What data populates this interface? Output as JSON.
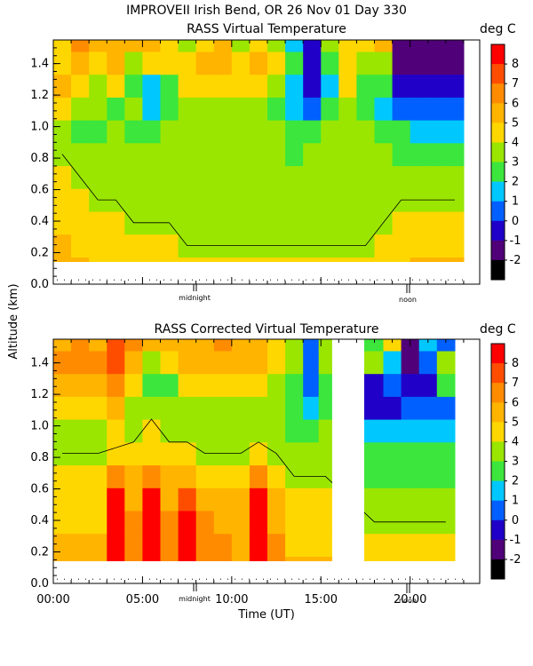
{
  "header": {
    "main_title": "IMPROVEII  Irish Bend, OR  26 Nov 01 Day 330",
    "y_axis_label": "Altitude (km)",
    "x_axis_label": "Time (UT)"
  },
  "markers": {
    "midnight": "midnight",
    "noon": "noon"
  },
  "colorbar": {
    "unit": "deg C",
    "levels": [
      "8",
      "7",
      "6",
      "5",
      "4",
      "3",
      "2",
      "1",
      "0",
      "-1",
      "-2"
    ],
    "colors": [
      "#ff0000",
      "#ff4d00",
      "#ff8c00",
      "#ffb400",
      "#ffd700",
      "#9ae600",
      "#3ce63c",
      "#00c8ff",
      "#0060ff",
      "#2000c8",
      "#500078",
      "#000000"
    ]
  },
  "chart_data": [
    {
      "type": "heatmap",
      "title": "RASS Virtual Temperature",
      "xlabel": "",
      "ylabel": "Altitude (km)",
      "xlim": [
        0,
        23.9
      ],
      "ylim": [
        0,
        1.55
      ],
      "x_ticks": [],
      "y_ticks": [
        "0.0",
        "0.2",
        "0.4",
        "0.6",
        "0.8",
        "1.0",
        "1.2",
        "1.4"
      ],
      "colorbar_unit": "deg C",
      "value_range": [
        -2,
        8
      ],
      "data_start_altitude_km": 0.1,
      "columns": [
        {
          "t": 0.5,
          "values": [
            5,
            5,
            4.5,
            4,
            4,
            3.5,
            3,
            4,
            5,
            4.5,
            4
          ]
        },
        {
          "t": 1.5,
          "values": [
            5,
            4.5,
            4,
            4,
            3.5,
            3,
            2.5,
            3,
            4,
            5,
            6
          ]
        },
        {
          "t": 2.5,
          "values": [
            4.5,
            4.5,
            4,
            3.5,
            3,
            3,
            2,
            3,
            3,
            4,
            5
          ]
        },
        {
          "t": 3.5,
          "values": [
            4.5,
            4,
            4,
            3.5,
            3,
            3,
            3,
            2,
            4,
            5,
            5
          ]
        },
        {
          "t": 4.5,
          "values": [
            4,
            4,
            3.5,
            3.5,
            3,
            3,
            2.5,
            3,
            2,
            3,
            5
          ]
        },
        {
          "t": 5.5,
          "values": [
            4,
            4,
            3.5,
            3,
            3,
            3,
            2,
            1,
            1,
            4,
            5
          ]
        },
        {
          "t": 6.5,
          "values": [
            4,
            4,
            3.5,
            3,
            3,
            3,
            3,
            2,
            2,
            4,
            4
          ]
        },
        {
          "t": 7.5,
          "values": [
            4,
            3.5,
            3.5,
            3,
            3,
            3,
            3,
            3,
            4,
            4,
            3
          ]
        },
        {
          "t": 8.5,
          "values": [
            4,
            3.5,
            3,
            3,
            3,
            3,
            3,
            3,
            4,
            5,
            4
          ]
        },
        {
          "t": 9.5,
          "values": [
            4,
            3.5,
            3,
            3,
            3,
            3,
            3,
            3,
            4,
            5,
            5
          ]
        },
        {
          "t": 10.5,
          "values": [
            4,
            3.5,
            3,
            3,
            3,
            3,
            3,
            3,
            4,
            4,
            3
          ]
        },
        {
          "t": 11.5,
          "values": [
            4,
            3.5,
            3,
            3,
            3,
            3,
            3,
            3,
            4,
            5,
            4
          ]
        },
        {
          "t": 12.5,
          "values": [
            4,
            3.5,
            3,
            3,
            3,
            3,
            3,
            2.5,
            3,
            4,
            3
          ]
        },
        {
          "t": 13.5,
          "values": [
            4,
            3.5,
            3,
            3,
            3,
            2.5,
            2,
            1,
            1,
            2,
            1
          ]
        },
        {
          "t": 14.5,
          "values": [
            4,
            3.5,
            3,
            3,
            3,
            3,
            2,
            0,
            -1,
            -1,
            -1
          ]
        },
        {
          "t": 15.5,
          "values": [
            4,
            3.5,
            3,
            3,
            3,
            3,
            3,
            2,
            1,
            2,
            3
          ]
        },
        {
          "t": 16.5,
          "values": [
            4,
            3.5,
            3,
            3,
            3,
            3,
            3,
            3,
            4,
            4,
            4
          ]
        },
        {
          "t": 17.5,
          "values": [
            4,
            3.5,
            3,
            3,
            3,
            3,
            3,
            2,
            2,
            3,
            4
          ]
        },
        {
          "t": 18.5,
          "values": [
            4,
            4,
            3.5,
            3.5,
            3,
            3,
            2,
            1,
            2,
            3,
            5
          ]
        },
        {
          "t": 19.5,
          "values": [
            4.5,
            4,
            4,
            3.5,
            3,
            2.5,
            2,
            0,
            -1,
            -2,
            -2
          ]
        },
        {
          "t": 20.5,
          "values": [
            5,
            4.5,
            4,
            3.5,
            3,
            2.5,
            1.5,
            0,
            -1,
            -2,
            -2
          ]
        },
        {
          "t": 21.5,
          "values": [
            5,
            4.5,
            4,
            3.5,
            3,
            2.5,
            1.5,
            0,
            -1,
            -2,
            -2
          ]
        },
        {
          "t": 22.5,
          "values": [
            5,
            4.5,
            4,
            3.5,
            3,
            2.5,
            1.5,
            0,
            -1,
            -2,
            -2
          ]
        }
      ]
    },
    {
      "type": "heatmap",
      "title": "RASS Corrected Virtual Temperature",
      "xlabel": "Time (UT)",
      "ylabel": "Altitude (km)",
      "xlim": [
        0,
        23.9
      ],
      "ylim": [
        0,
        1.55
      ],
      "x_ticks": [
        "00:00",
        "05:00",
        "10:00",
        "15:00",
        "20:00"
      ],
      "y_ticks": [
        "0.0",
        "0.2",
        "0.4",
        "0.6",
        "0.8",
        "1.0",
        "1.2",
        "1.4"
      ],
      "colorbar_unit": "deg C",
      "value_range": [
        -2,
        8
      ],
      "data_start_altitude_km": 0.1,
      "data_gap_hours": [
        15.6,
        17.4
      ],
      "columns": [
        {
          "t": 0.5,
          "values": [
            5,
            5,
            4.5,
            4,
            4,
            3.5,
            3,
            4,
            5,
            6,
            5
          ]
        },
        {
          "t": 1.5,
          "values": [
            5,
            5,
            4.5,
            4,
            4,
            3.5,
            3,
            4,
            5,
            6,
            6
          ]
        },
        {
          "t": 2.5,
          "values": [
            5,
            5,
            4.5,
            4,
            4,
            3.5,
            3,
            4,
            5,
            6,
            5
          ]
        },
        {
          "t": 3.5,
          "values": [
            8,
            8,
            8,
            8,
            6,
            4,
            4,
            5,
            6,
            7,
            7
          ]
        },
        {
          "t": 4.5,
          "values": [
            6,
            6,
            6,
            5,
            5,
            4,
            3,
            3,
            4,
            5,
            6
          ]
        },
        {
          "t": 5.5,
          "values": [
            8,
            8,
            8,
            8,
            6,
            4,
            4,
            3,
            2,
            3,
            5
          ]
        },
        {
          "t": 6.5,
          "values": [
            6,
            6,
            6,
            5,
            5,
            4,
            3,
            3,
            2,
            4,
            5
          ]
        },
        {
          "t": 7.5,
          "values": [
            8,
            8,
            8,
            7,
            5,
            4,
            3,
            3,
            4,
            5,
            5
          ]
        },
        {
          "t": 8.5,
          "values": [
            6,
            6,
            6,
            5,
            4,
            3.5,
            3,
            3,
            4,
            5,
            5
          ]
        },
        {
          "t": 9.5,
          "values": [
            6,
            6,
            5,
            5,
            4,
            3.5,
            3,
            3,
            4,
            5,
            6
          ]
        },
        {
          "t": 10.5,
          "values": [
            5,
            5,
            5,
            5,
            4,
            3.5,
            3,
            3,
            4,
            5,
            5
          ]
        },
        {
          "t": 11.5,
          "values": [
            8,
            8,
            8,
            8,
            6,
            4,
            3,
            3,
            4,
            5,
            5
          ]
        },
        {
          "t": 12.5,
          "values": [
            6,
            6,
            5,
            5,
            4,
            3.5,
            3,
            3,
            3,
            4,
            4
          ]
        },
        {
          "t": 13.5,
          "values": [
            5,
            4.5,
            4,
            4,
            3.5,
            3,
            2.5,
            2,
            2,
            3,
            3
          ]
        },
        {
          "t": 14.5,
          "values": [
            5,
            4.5,
            4,
            4,
            3.5,
            3,
            2,
            1,
            0,
            0,
            0
          ]
        },
        {
          "t": 15.25,
          "values": [
            5,
            4.5,
            4,
            4,
            3.5,
            3,
            3,
            2,
            2,
            3,
            3
          ]
        },
        {
          "t": 18.0,
          "values": [
            4.5,
            4,
            3.5,
            3,
            2.5,
            2,
            1,
            -1,
            -1,
            3,
            2
          ]
        },
        {
          "t": 19.0,
          "values": [
            4.5,
            4,
            3.5,
            3,
            2.5,
            2,
            1,
            -1,
            0,
            1,
            4
          ]
        },
        {
          "t": 20.0,
          "values": [
            4.5,
            4,
            3.5,
            3,
            2.5,
            2,
            1.5,
            0,
            -1,
            -2,
            -2
          ]
        },
        {
          "t": 21.0,
          "values": [
            4.5,
            4,
            3.5,
            3,
            2.5,
            2,
            1,
            0,
            -1,
            0,
            1
          ]
        },
        {
          "t": 22.0,
          "values": [
            4.5,
            4,
            3.5,
            3,
            2.5,
            2,
            1,
            0,
            2,
            3,
            0
          ]
        }
      ]
    }
  ]
}
